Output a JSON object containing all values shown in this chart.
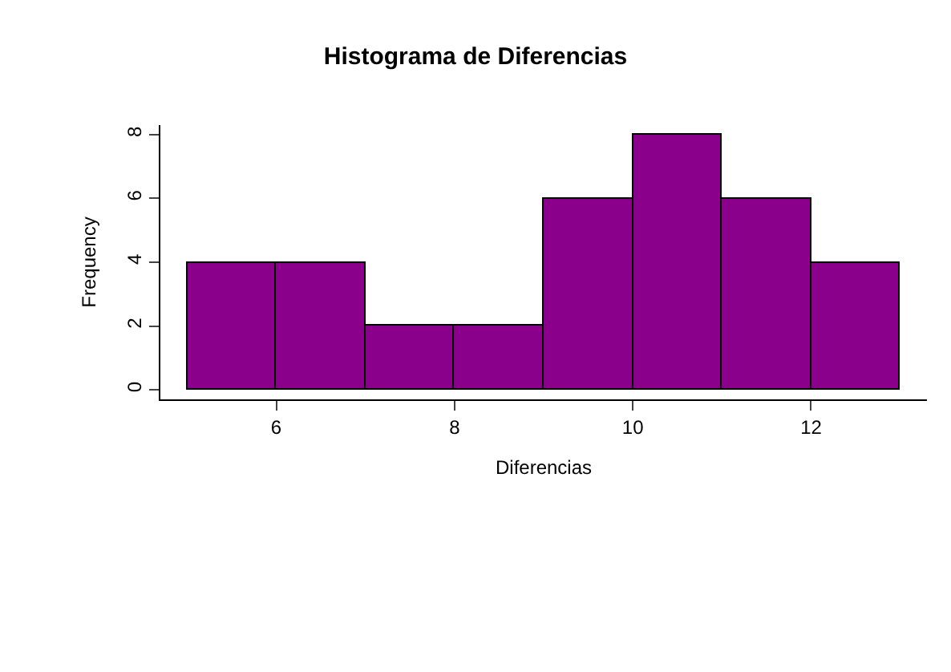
{
  "chart_data": {
    "type": "histogram",
    "title": "Histograma de Diferencias",
    "xlabel": "Diferencias",
    "ylabel": "Frequency",
    "bins": [
      5,
      6,
      7,
      8,
      9,
      10,
      11,
      12,
      13
    ],
    "values": [
      4,
      4,
      2,
      2,
      6,
      8,
      6,
      4
    ],
    "color": "#8b008b",
    "xlim": [
      4.7,
      13.3
    ],
    "ylim": [
      -0.3,
      8.3
    ],
    "xticks": [
      6,
      8,
      10,
      12
    ],
    "yticks": [
      0,
      2,
      4,
      6,
      8
    ]
  }
}
